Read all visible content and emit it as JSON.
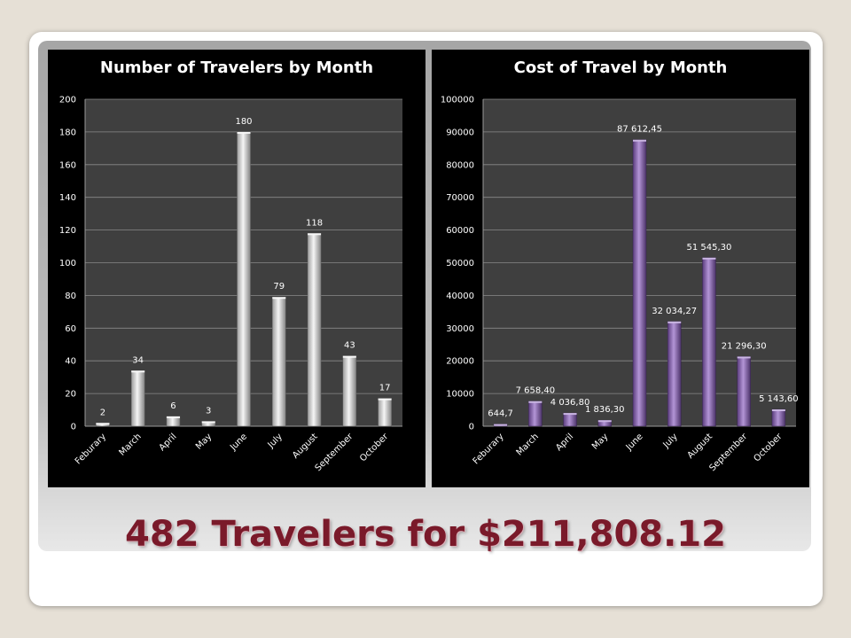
{
  "headline": "482 Travelers for $211,808.12",
  "chart_data": [
    {
      "type": "bar",
      "title": "Number of Travelers by Month",
      "categories": [
        "Feburary",
        "March",
        "April",
        "May",
        "June",
        "July",
        "August",
        "September",
        "October"
      ],
      "values": [
        2,
        34,
        6,
        3,
        180,
        79,
        118,
        43,
        17
      ],
      "value_labels": [
        "2",
        "34",
        "6",
        "3",
        "180",
        "79",
        "118",
        "43",
        "17"
      ],
      "ylim": [
        0,
        200
      ],
      "yticks": [
        0,
        20,
        40,
        60,
        80,
        100,
        120,
        140,
        160,
        180,
        200
      ],
      "grid": true,
      "bar_color": "#f0f0f0"
    },
    {
      "type": "bar",
      "title": "Cost of Travel by Month",
      "categories": [
        "Feburary",
        "March",
        "April",
        "May",
        "June",
        "July",
        "August",
        "September",
        "October"
      ],
      "values": [
        644.7,
        7658.4,
        4036.8,
        1836.3,
        87612.45,
        32034.27,
        51545.3,
        21296.3,
        5143.6
      ],
      "value_labels": [
        "644,7",
        "7 658,40",
        "4 036,80",
        "1 836,30",
        "87 612,45",
        "32 034,27",
        "51 545,30",
        "21 296,30",
        "5 143,60"
      ],
      "ylim": [
        0,
        100000
      ],
      "yticks": [
        0,
        10000,
        20000,
        30000,
        40000,
        50000,
        60000,
        70000,
        80000,
        90000,
        100000
      ],
      "grid": true,
      "bar_color": "#8a5cc0"
    }
  ]
}
